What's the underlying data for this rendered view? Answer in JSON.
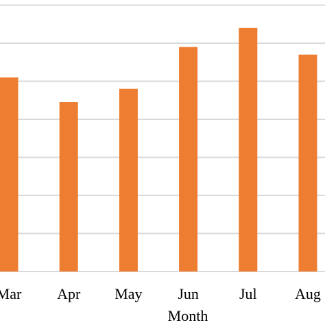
{
  "chart_data": {
    "type": "bar",
    "xlabel": "Month",
    "categories": [
      "Mar",
      "Apr",
      "May",
      "Jun",
      "Jul",
      "Aug"
    ],
    "values": [
      5.1,
      4.45,
      4.8,
      5.9,
      6.4,
      5.7
    ],
    "ylim": [
      0,
      7
    ],
    "grid": true,
    "bar_color": "#ED7D31",
    "grid_color": "#D9D9D9"
  }
}
